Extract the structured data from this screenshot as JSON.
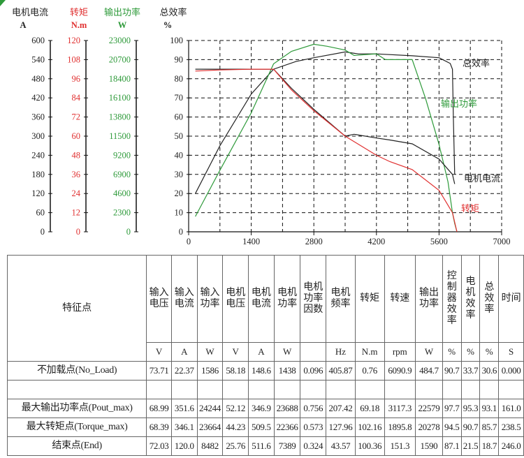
{
  "chart_data": {
    "type": "line",
    "xlim": [
      0,
      7000
    ],
    "xticks": [
      "0",
      "1400",
      "2800",
      "4200",
      "5600",
      "7000"
    ],
    "grid": true,
    "axes": [
      {
        "name": "电机电流",
        "unit": "A",
        "color": "#222222",
        "ticks": [
          "600",
          "540",
          "480",
          "420",
          "360",
          "300",
          "240",
          "180",
          "120",
          "60",
          "0"
        ],
        "range": [
          0,
          600
        ]
      },
      {
        "name": "转矩",
        "unit": "N.m",
        "color": "#e03030",
        "ticks": [
          "120",
          "108",
          "96",
          "84",
          "72",
          "60",
          "48",
          "36",
          "24",
          "12",
          "0"
        ],
        "range": [
          0,
          120
        ]
      },
      {
        "name": "输出功率",
        "unit": "W",
        "color": "#2e9a3a",
        "ticks": [
          "23000",
          "20700",
          "18400",
          "16100",
          "13800",
          "11500",
          "9200",
          "6900",
          "4600",
          "2300",
          "0"
        ],
        "range": [
          0,
          23000
        ]
      },
      {
        "name": "总效率",
        "unit": "%",
        "color": "#222222",
        "ticks": [
          "100",
          "90",
          "80",
          "70",
          "60",
          "50",
          "40",
          "30",
          "20",
          "10",
          "0"
        ],
        "range": [
          0,
          100
        ]
      }
    ],
    "series": [
      {
        "name": "总效率",
        "label": "总效率",
        "color": "#222222",
        "axis": 3,
        "x": [
          150,
          700,
          1400,
          1900,
          2400,
          2800,
          3500,
          3800,
          4200,
          5000,
          5600,
          5850,
          5900,
          5920,
          5950
        ],
        "y": [
          20,
          45,
          72,
          85,
          89,
          91,
          94,
          93,
          93,
          92,
          91,
          88,
          85,
          60,
          30
        ]
      },
      {
        "name": "输出功率",
        "label": "输出功率",
        "color": "#2e9a3a",
        "axis": 2,
        "x": [
          150,
          700,
          1400,
          1900,
          2300,
          2800,
          3100,
          3500,
          3700,
          4200,
          4400,
          5000,
          5300,
          5600,
          5800,
          5900,
          5950,
          6000
        ],
        "y": [
          1840,
          7400,
          14300,
          20200,
          21700,
          22550,
          22300,
          21850,
          21200,
          21400,
          20700,
          20700,
          16000,
          10500,
          6000,
          2300,
          1000,
          0
        ]
      },
      {
        "name": "电机电流",
        "label": "电机电流",
        "color": "#222222",
        "axis": 0,
        "x": [
          150,
          700,
          1400,
          1900,
          2300,
          2800,
          3500,
          3700,
          4200,
          4500,
          5000,
          5600,
          5900,
          5950
        ],
        "y": [
          510,
          510,
          510,
          510,
          450,
          384,
          300,
          306,
          294,
          288,
          276,
          228,
          180,
          150
        ]
      },
      {
        "name": "转矩",
        "label": "转矩",
        "color": "#e03030",
        "axis": 1,
        "x": [
          150,
          700,
          1400,
          1900,
          2300,
          2800,
          3500,
          4200,
          4500,
          5000,
          5600,
          5900,
          6000
        ],
        "y": [
          100.8,
          101.5,
          102,
          102,
          89,
          76,
          60,
          48,
          44,
          39,
          26,
          12,
          0
        ]
      }
    ]
  },
  "table": {
    "header_label": "特征点",
    "columns": [
      "输入电压",
      "输入电流",
      "输入功率",
      "电机电压",
      "电机电流",
      "电机功率",
      "电机功率因数",
      "电机频率",
      "转矩",
      "转速",
      "输出功率",
      "控制器效率",
      "电机效率",
      "总效率",
      "时间"
    ],
    "units": [
      "V",
      "A",
      "W",
      "V",
      "A",
      "W",
      "",
      "Hz",
      "N.m",
      "rpm",
      "W",
      "%",
      "%",
      "%",
      "S"
    ],
    "rows": [
      {
        "label": "不加载点(No_Load)",
        "values": [
          "73.71",
          "22.37",
          "1586",
          "58.18",
          "148.6",
          "1438",
          "0.096",
          "405.87",
          "0.76",
          "6090.9",
          "484.7",
          "90.7",
          "33.7",
          "30.6",
          "0.000"
        ]
      },
      {
        "label": "",
        "values": [
          "",
          "",
          "",
          "",
          "",
          "",
          "",
          "",
          "",
          "",
          "",
          "",
          "",
          "",
          ""
        ]
      },
      {
        "label": "最大输出功率点(Pout_max)",
        "values": [
          "68.99",
          "351.6",
          "24244",
          "52.12",
          "346.9",
          "23688",
          "0.756",
          "207.42",
          "69.18",
          "3117.3",
          "22579",
          "97.7",
          "95.3",
          "93.1",
          "161.0"
        ]
      },
      {
        "label": "最大转矩点(Torque_max)",
        "values": [
          "68.39",
          "346.1",
          "23664",
          "44.23",
          "509.5",
          "22366",
          "0.573",
          "127.96",
          "102.16",
          "1895.8",
          "20278",
          "94.5",
          "90.7",
          "85.7",
          "238.5"
        ]
      },
      {
        "label": "结束点(End)",
        "values": [
          "72.03",
          "120.0",
          "8482",
          "25.76",
          "511.6",
          "7389",
          "0.324",
          "43.57",
          "100.36",
          "151.3",
          "1590",
          "87.1",
          "21.5",
          "18.7",
          "246.0"
        ]
      }
    ]
  }
}
